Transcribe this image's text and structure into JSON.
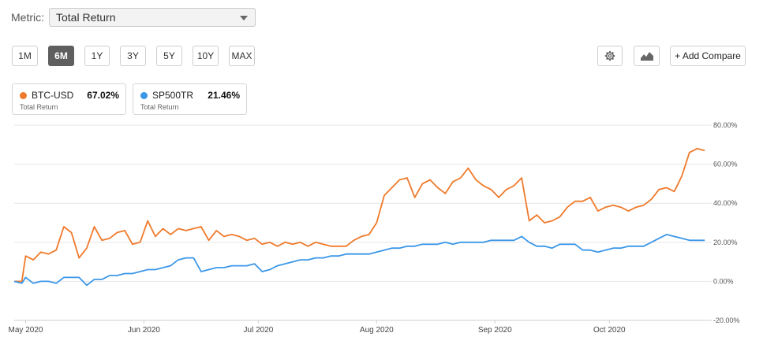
{
  "metric": {
    "label": "Metric:",
    "selected": "Total Return"
  },
  "ranges": [
    "1M",
    "6M",
    "1Y",
    "3Y",
    "5Y",
    "10Y",
    "MAX"
  ],
  "active_range": "6M",
  "toolbar": {
    "settings_icon": "gear-icon",
    "chart_type_icon": "mountain-chart-icon",
    "compare_label": "+ Add Compare"
  },
  "legend": [
    {
      "name": "BTC-USD",
      "value": "67.02%",
      "sub": "Total Return",
      "color": "#ef7a2b"
    },
    {
      "name": "SP500TR",
      "value": "21.46%",
      "sub": "Total Return",
      "color": "#3b97e8"
    }
  ],
  "chart_data": {
    "type": "line",
    "y_ticks": [
      "80.00%",
      "60.00%",
      "40.00%",
      "20.00%",
      "0.00%",
      "-20.00%"
    ],
    "ylim": [
      -20,
      80
    ],
    "x_ticks": [
      {
        "label": "May 2020",
        "t": 1
      },
      {
        "label": "Jun 2020",
        "t": 32
      },
      {
        "label": "Jul 2020",
        "t": 62
      },
      {
        "label": "Aug 2020",
        "t": 93
      },
      {
        "label": "Sep 2020",
        "t": 124
      },
      {
        "label": "Oct 2020",
        "t": 154
      }
    ],
    "x_range": [
      -2,
      180
    ],
    "series": [
      {
        "name": "BTC-USD",
        "color": "#ef7a2b",
        "points": [
          [
            -2,
            0
          ],
          [
            0,
            0
          ],
          [
            1,
            13
          ],
          [
            3,
            11
          ],
          [
            5,
            15
          ],
          [
            7,
            14
          ],
          [
            9,
            16
          ],
          [
            11,
            28
          ],
          [
            13,
            25
          ],
          [
            15,
            12
          ],
          [
            17,
            17
          ],
          [
            19,
            28
          ],
          [
            21,
            21
          ],
          [
            23,
            22
          ],
          [
            25,
            25
          ],
          [
            27,
            26
          ],
          [
            29,
            19
          ],
          [
            31,
            20
          ],
          [
            33,
            31
          ],
          [
            35,
            23
          ],
          [
            37,
            27
          ],
          [
            39,
            24
          ],
          [
            41,
            27
          ],
          [
            43,
            26
          ],
          [
            45,
            27
          ],
          [
            47,
            28
          ],
          [
            49,
            21
          ],
          [
            51,
            26
          ],
          [
            53,
            23
          ],
          [
            55,
            24
          ],
          [
            57,
            23
          ],
          [
            59,
            21
          ],
          [
            61,
            22
          ],
          [
            63,
            19
          ],
          [
            65,
            20
          ],
          [
            67,
            18
          ],
          [
            69,
            20
          ],
          [
            71,
            19
          ],
          [
            73,
            20
          ],
          [
            75,
            18
          ],
          [
            77,
            20
          ],
          [
            79,
            19
          ],
          [
            81,
            18
          ],
          [
            83,
            18
          ],
          [
            85,
            18
          ],
          [
            87,
            21
          ],
          [
            89,
            23
          ],
          [
            91,
            24
          ],
          [
            93,
            30
          ],
          [
            95,
            44
          ],
          [
            97,
            48
          ],
          [
            99,
            52
          ],
          [
            101,
            53
          ],
          [
            103,
            43
          ],
          [
            105,
            50
          ],
          [
            107,
            52
          ],
          [
            109,
            48
          ],
          [
            111,
            45
          ],
          [
            113,
            51
          ],
          [
            115,
            53
          ],
          [
            117,
            58
          ],
          [
            119,
            52
          ],
          [
            121,
            49
          ],
          [
            123,
            47
          ],
          [
            125,
            43
          ],
          [
            127,
            47
          ],
          [
            129,
            49
          ],
          [
            131,
            53
          ],
          [
            133,
            31
          ],
          [
            135,
            34
          ],
          [
            137,
            30
          ],
          [
            139,
            31
          ],
          [
            141,
            33
          ],
          [
            143,
            38
          ],
          [
            145,
            41
          ],
          [
            147,
            41
          ],
          [
            149,
            43
          ],
          [
            151,
            36
          ],
          [
            153,
            38
          ],
          [
            155,
            39
          ],
          [
            157,
            38
          ],
          [
            159,
            36
          ],
          [
            161,
            38
          ],
          [
            163,
            39
          ],
          [
            165,
            42
          ],
          [
            167,
            47
          ],
          [
            169,
            48
          ],
          [
            171,
            46
          ],
          [
            173,
            54
          ],
          [
            175,
            66
          ],
          [
            177,
            68
          ],
          [
            179,
            67
          ]
        ]
      },
      {
        "name": "SP500TR",
        "color": "#3b97e8",
        "points": [
          [
            -2,
            0
          ],
          [
            0,
            -1
          ],
          [
            1,
            2
          ],
          [
            3,
            -1
          ],
          [
            5,
            0
          ],
          [
            7,
            0
          ],
          [
            9,
            -1
          ],
          [
            11,
            2
          ],
          [
            13,
            2
          ],
          [
            15,
            2
          ],
          [
            17,
            -2
          ],
          [
            19,
            1
          ],
          [
            21,
            1
          ],
          [
            23,
            3
          ],
          [
            25,
            3
          ],
          [
            27,
            4
          ],
          [
            29,
            4
          ],
          [
            31,
            5
          ],
          [
            33,
            6
          ],
          [
            35,
            6
          ],
          [
            37,
            7
          ],
          [
            39,
            8
          ],
          [
            41,
            11
          ],
          [
            43,
            12
          ],
          [
            45,
            12
          ],
          [
            47,
            5
          ],
          [
            49,
            6
          ],
          [
            51,
            7
          ],
          [
            53,
            7
          ],
          [
            55,
            8
          ],
          [
            57,
            8
          ],
          [
            59,
            8
          ],
          [
            61,
            9
          ],
          [
            63,
            5
          ],
          [
            65,
            6
          ],
          [
            67,
            8
          ],
          [
            69,
            9
          ],
          [
            71,
            10
          ],
          [
            73,
            11
          ],
          [
            75,
            11
          ],
          [
            77,
            12
          ],
          [
            79,
            12
          ],
          [
            81,
            13
          ],
          [
            83,
            13
          ],
          [
            85,
            14
          ],
          [
            87,
            14
          ],
          [
            89,
            14
          ],
          [
            91,
            14
          ],
          [
            93,
            15
          ],
          [
            95,
            16
          ],
          [
            97,
            17
          ],
          [
            99,
            17
          ],
          [
            101,
            18
          ],
          [
            103,
            18
          ],
          [
            105,
            19
          ],
          [
            107,
            19
          ],
          [
            109,
            19
          ],
          [
            111,
            20
          ],
          [
            113,
            19
          ],
          [
            115,
            20
          ],
          [
            117,
            20
          ],
          [
            119,
            20
          ],
          [
            121,
            20
          ],
          [
            123,
            21
          ],
          [
            125,
            21
          ],
          [
            127,
            21
          ],
          [
            129,
            21
          ],
          [
            131,
            23
          ],
          [
            133,
            20
          ],
          [
            135,
            18
          ],
          [
            137,
            18
          ],
          [
            139,
            17
          ],
          [
            141,
            19
          ],
          [
            143,
            19
          ],
          [
            145,
            19
          ],
          [
            147,
            16
          ],
          [
            149,
            16
          ],
          [
            151,
            15
          ],
          [
            153,
            16
          ],
          [
            155,
            17
          ],
          [
            157,
            17
          ],
          [
            159,
            18
          ],
          [
            161,
            18
          ],
          [
            163,
            18
          ],
          [
            165,
            20
          ],
          [
            167,
            22
          ],
          [
            169,
            24
          ],
          [
            171,
            23
          ],
          [
            173,
            22
          ],
          [
            175,
            21
          ],
          [
            177,
            21
          ],
          [
            179,
            21
          ]
        ]
      }
    ]
  }
}
